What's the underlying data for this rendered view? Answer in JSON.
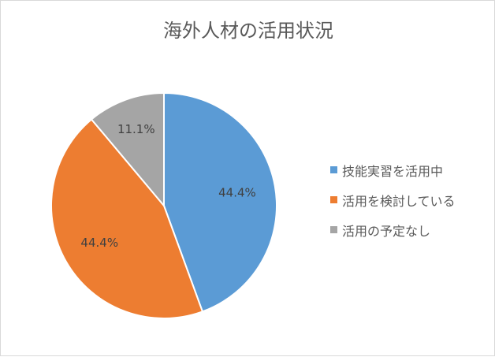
{
  "chart_data": {
    "type": "pie",
    "title": "海外人材の活用状況",
    "categories": [
      "技能実習を活用中",
      "活用を検討している",
      "活用の予定なし"
    ],
    "values": [
      44.4,
      44.4,
      11.1
    ],
    "data_labels": [
      "44.4%",
      "44.4%",
      "11.1%"
    ],
    "colors": [
      "#5b9bd5",
      "#ed7d31",
      "#a5a5a5"
    ],
    "start_angle": "12 o'clock",
    "direction": "clockwise",
    "legend_position": "right"
  }
}
